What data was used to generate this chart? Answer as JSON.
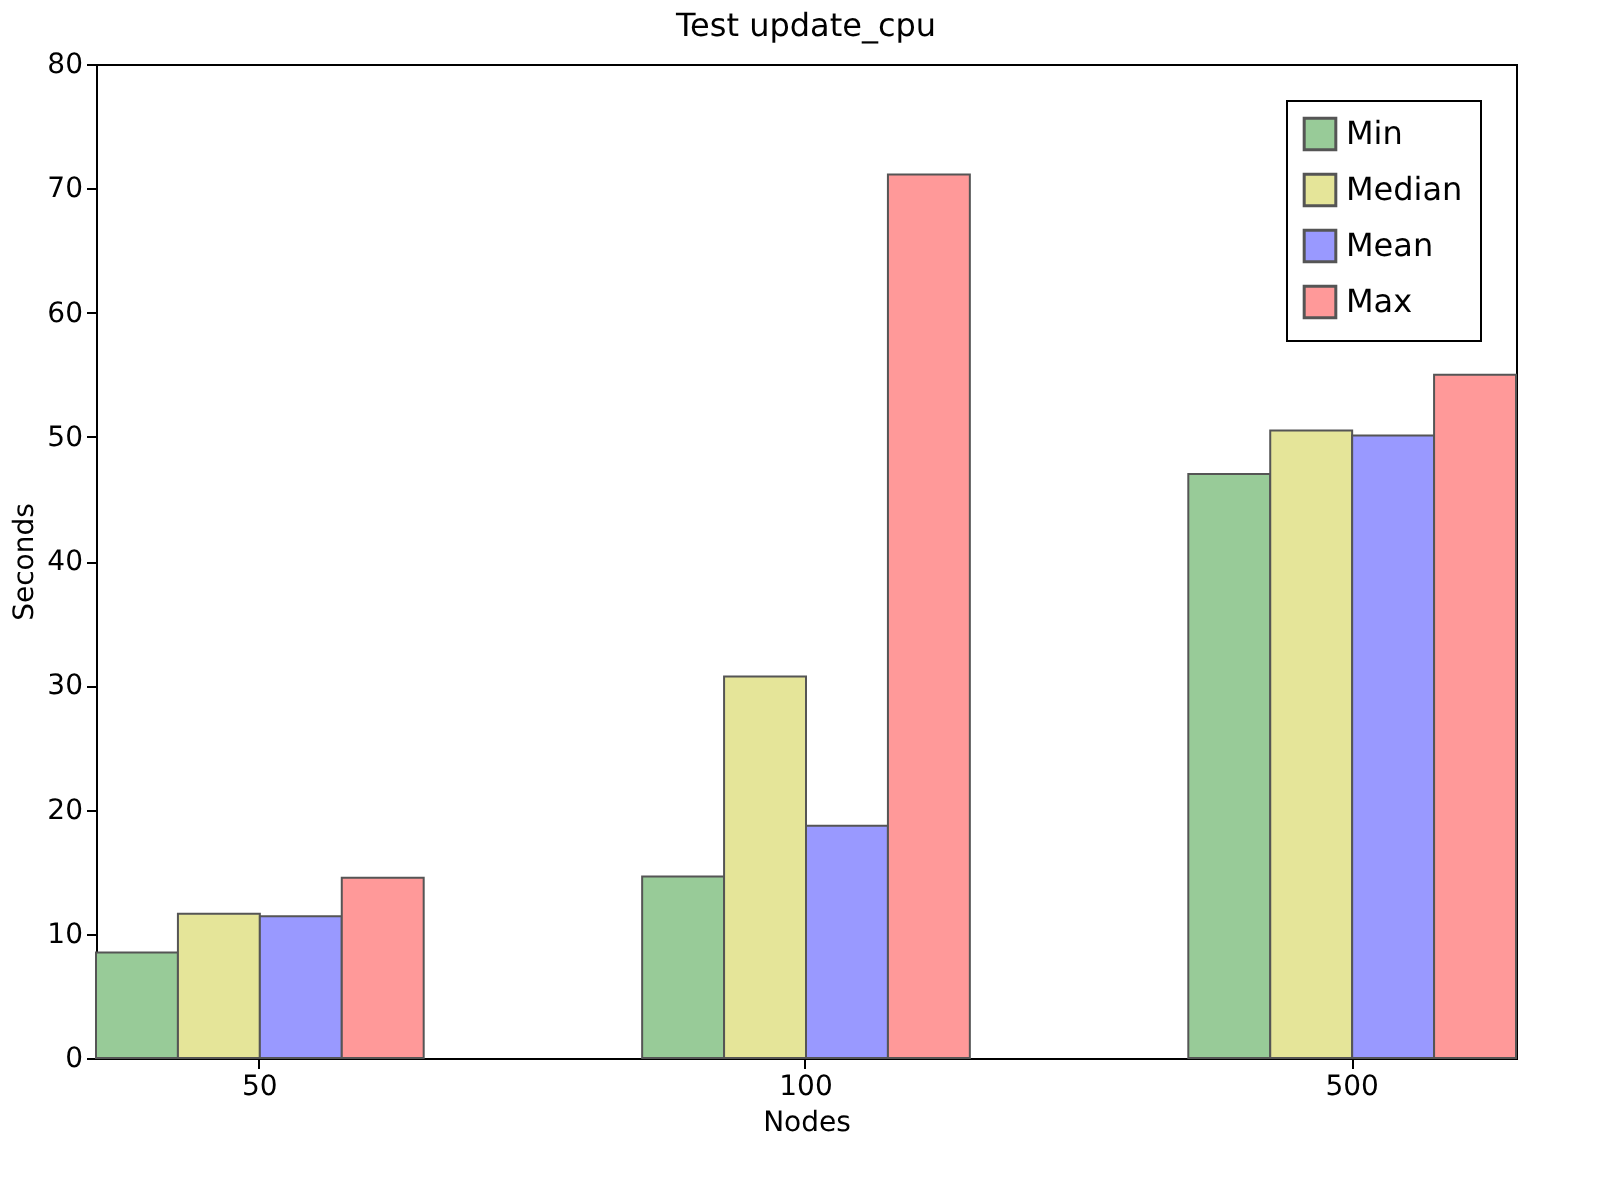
{
  "chart_data": {
    "type": "bar",
    "title": "Test update_cpu",
    "xlabel": "Nodes",
    "ylabel": "Seconds",
    "categories": [
      "50",
      "100",
      "500"
    ],
    "series": [
      {
        "name": "Min",
        "color": "#98cb98",
        "values": [
          8.5,
          14.6,
          47.0
        ]
      },
      {
        "name": "Median",
        "color": "#e5e599",
        "values": [
          11.6,
          30.7,
          50.5
        ]
      },
      {
        "name": "Mean",
        "color": "#9999ff",
        "values": [
          11.4,
          18.7,
          50.1
        ]
      },
      {
        "name": "Max",
        "color": "#ff9999",
        "values": [
          14.5,
          71.1,
          55.0
        ]
      }
    ],
    "ylim": [
      0,
      80
    ],
    "yticks": [
      0,
      10,
      20,
      30,
      40,
      50,
      60,
      70,
      80
    ],
    "grid": false,
    "legend": "top right"
  }
}
